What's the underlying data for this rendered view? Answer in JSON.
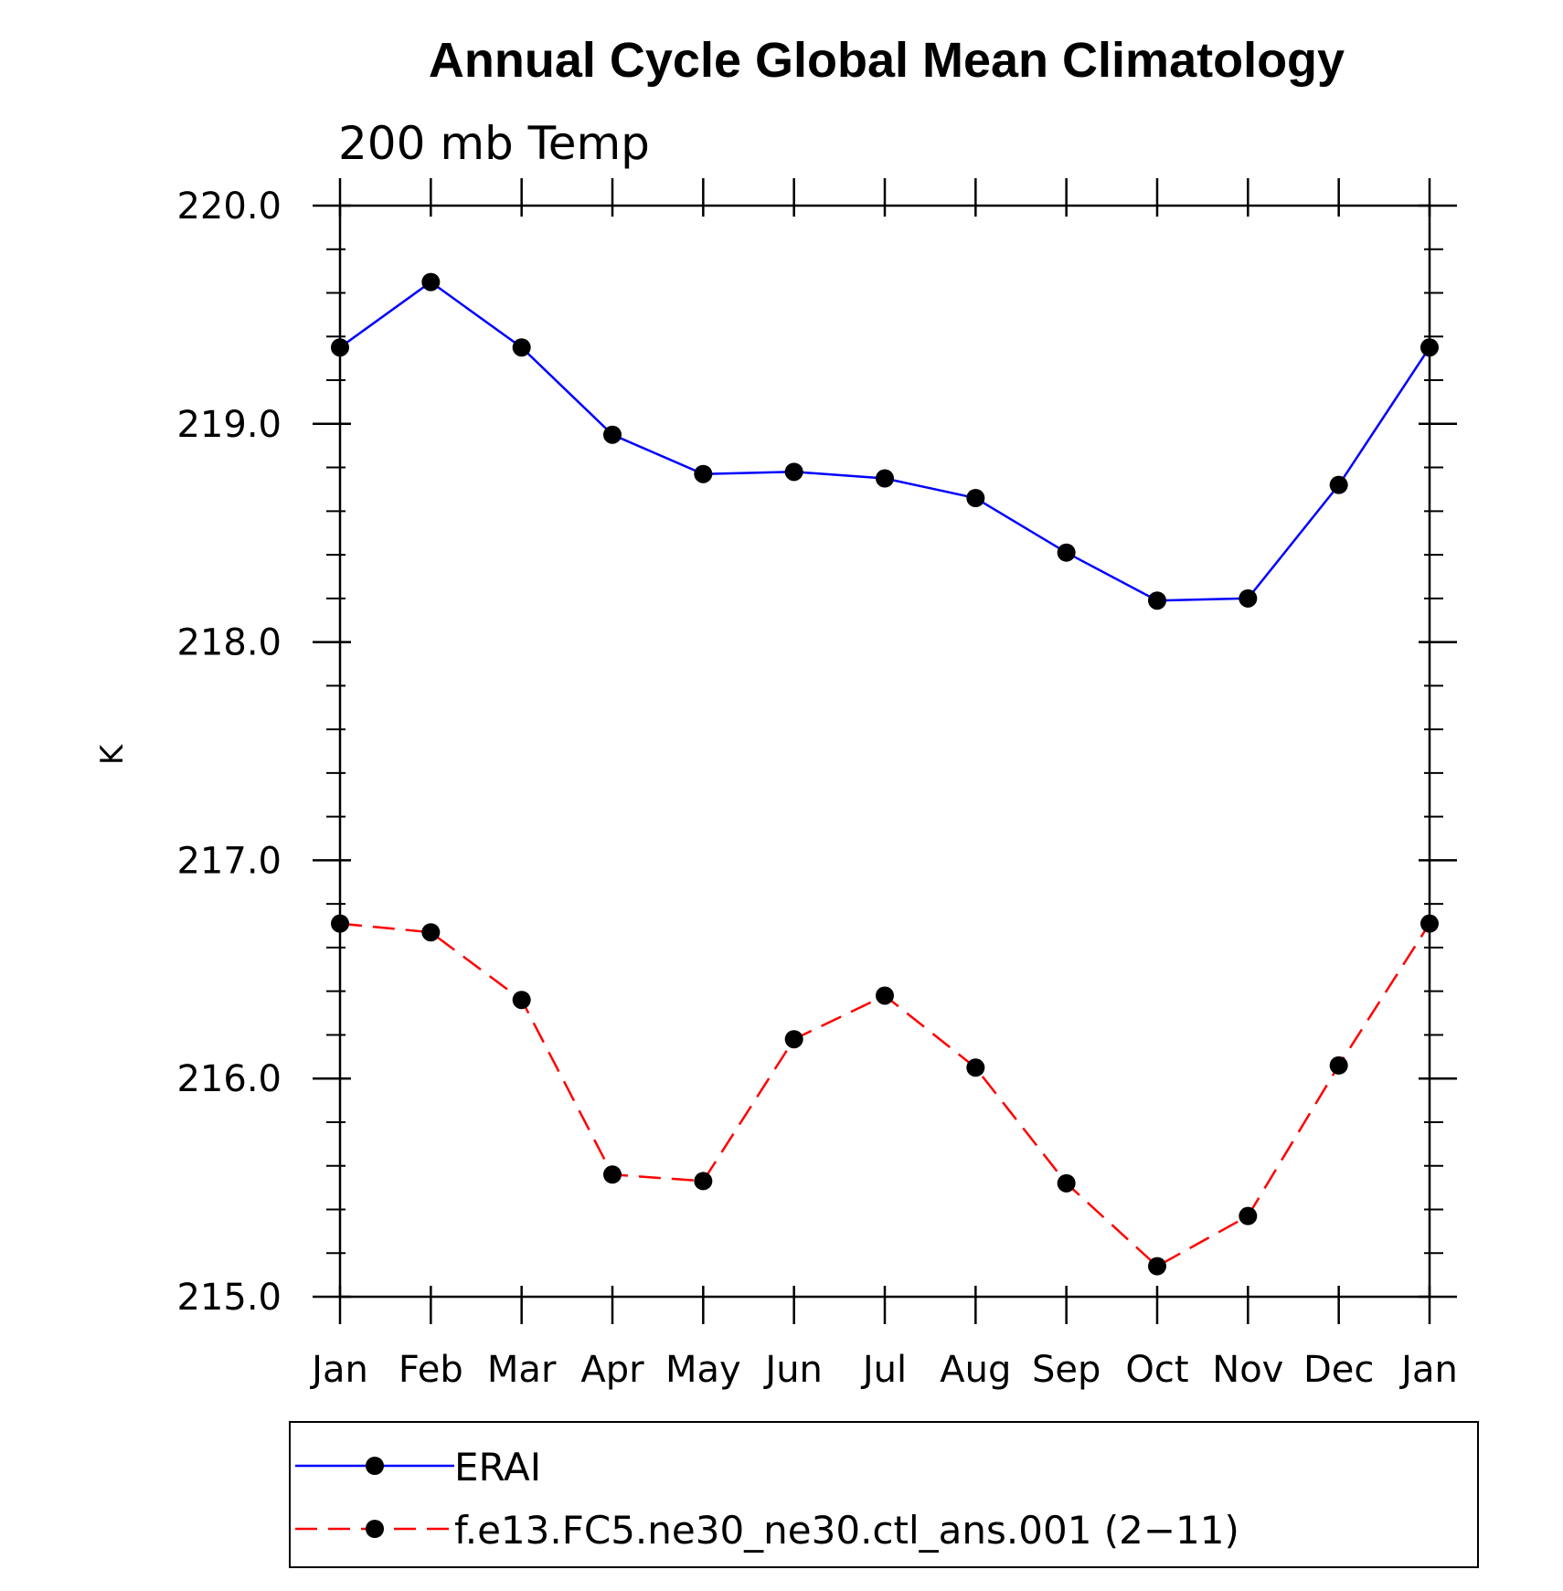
{
  "chart_data": {
    "type": "line",
    "title": "Annual Cycle Global Mean Climatology",
    "subtitle": "200 mb Temp",
    "ylabel": "K",
    "xlabel": "",
    "categories": [
      "Jan",
      "Feb",
      "Mar",
      "Apr",
      "May",
      "Jun",
      "Jul",
      "Aug",
      "Sep",
      "Oct",
      "Nov",
      "Dec",
      "Jan"
    ],
    "ylim": [
      215.0,
      220.0
    ],
    "yticks": [
      "215.0",
      "216.0",
      "217.0",
      "218.0",
      "219.0",
      "220.0"
    ],
    "series": [
      {
        "name": "ERAI",
        "color": "#0000ff",
        "style": "solid",
        "values": [
          219.35,
          219.65,
          219.35,
          218.95,
          218.77,
          218.78,
          218.75,
          218.66,
          218.41,
          218.19,
          218.2,
          218.72,
          219.35
        ]
      },
      {
        "name": "f.e13.FC5.ne30_ne30.ctl_ans.001 (2−11)",
        "color": "#ff0000",
        "style": "dashed",
        "values": [
          216.71,
          216.67,
          216.36,
          215.56,
          215.53,
          216.18,
          216.38,
          216.05,
          215.52,
          215.14,
          215.37,
          216.06,
          216.71
        ]
      }
    ],
    "marker": "filled-circle",
    "marker_color": "#000000",
    "legend_position": "bottom",
    "grid": false
  }
}
